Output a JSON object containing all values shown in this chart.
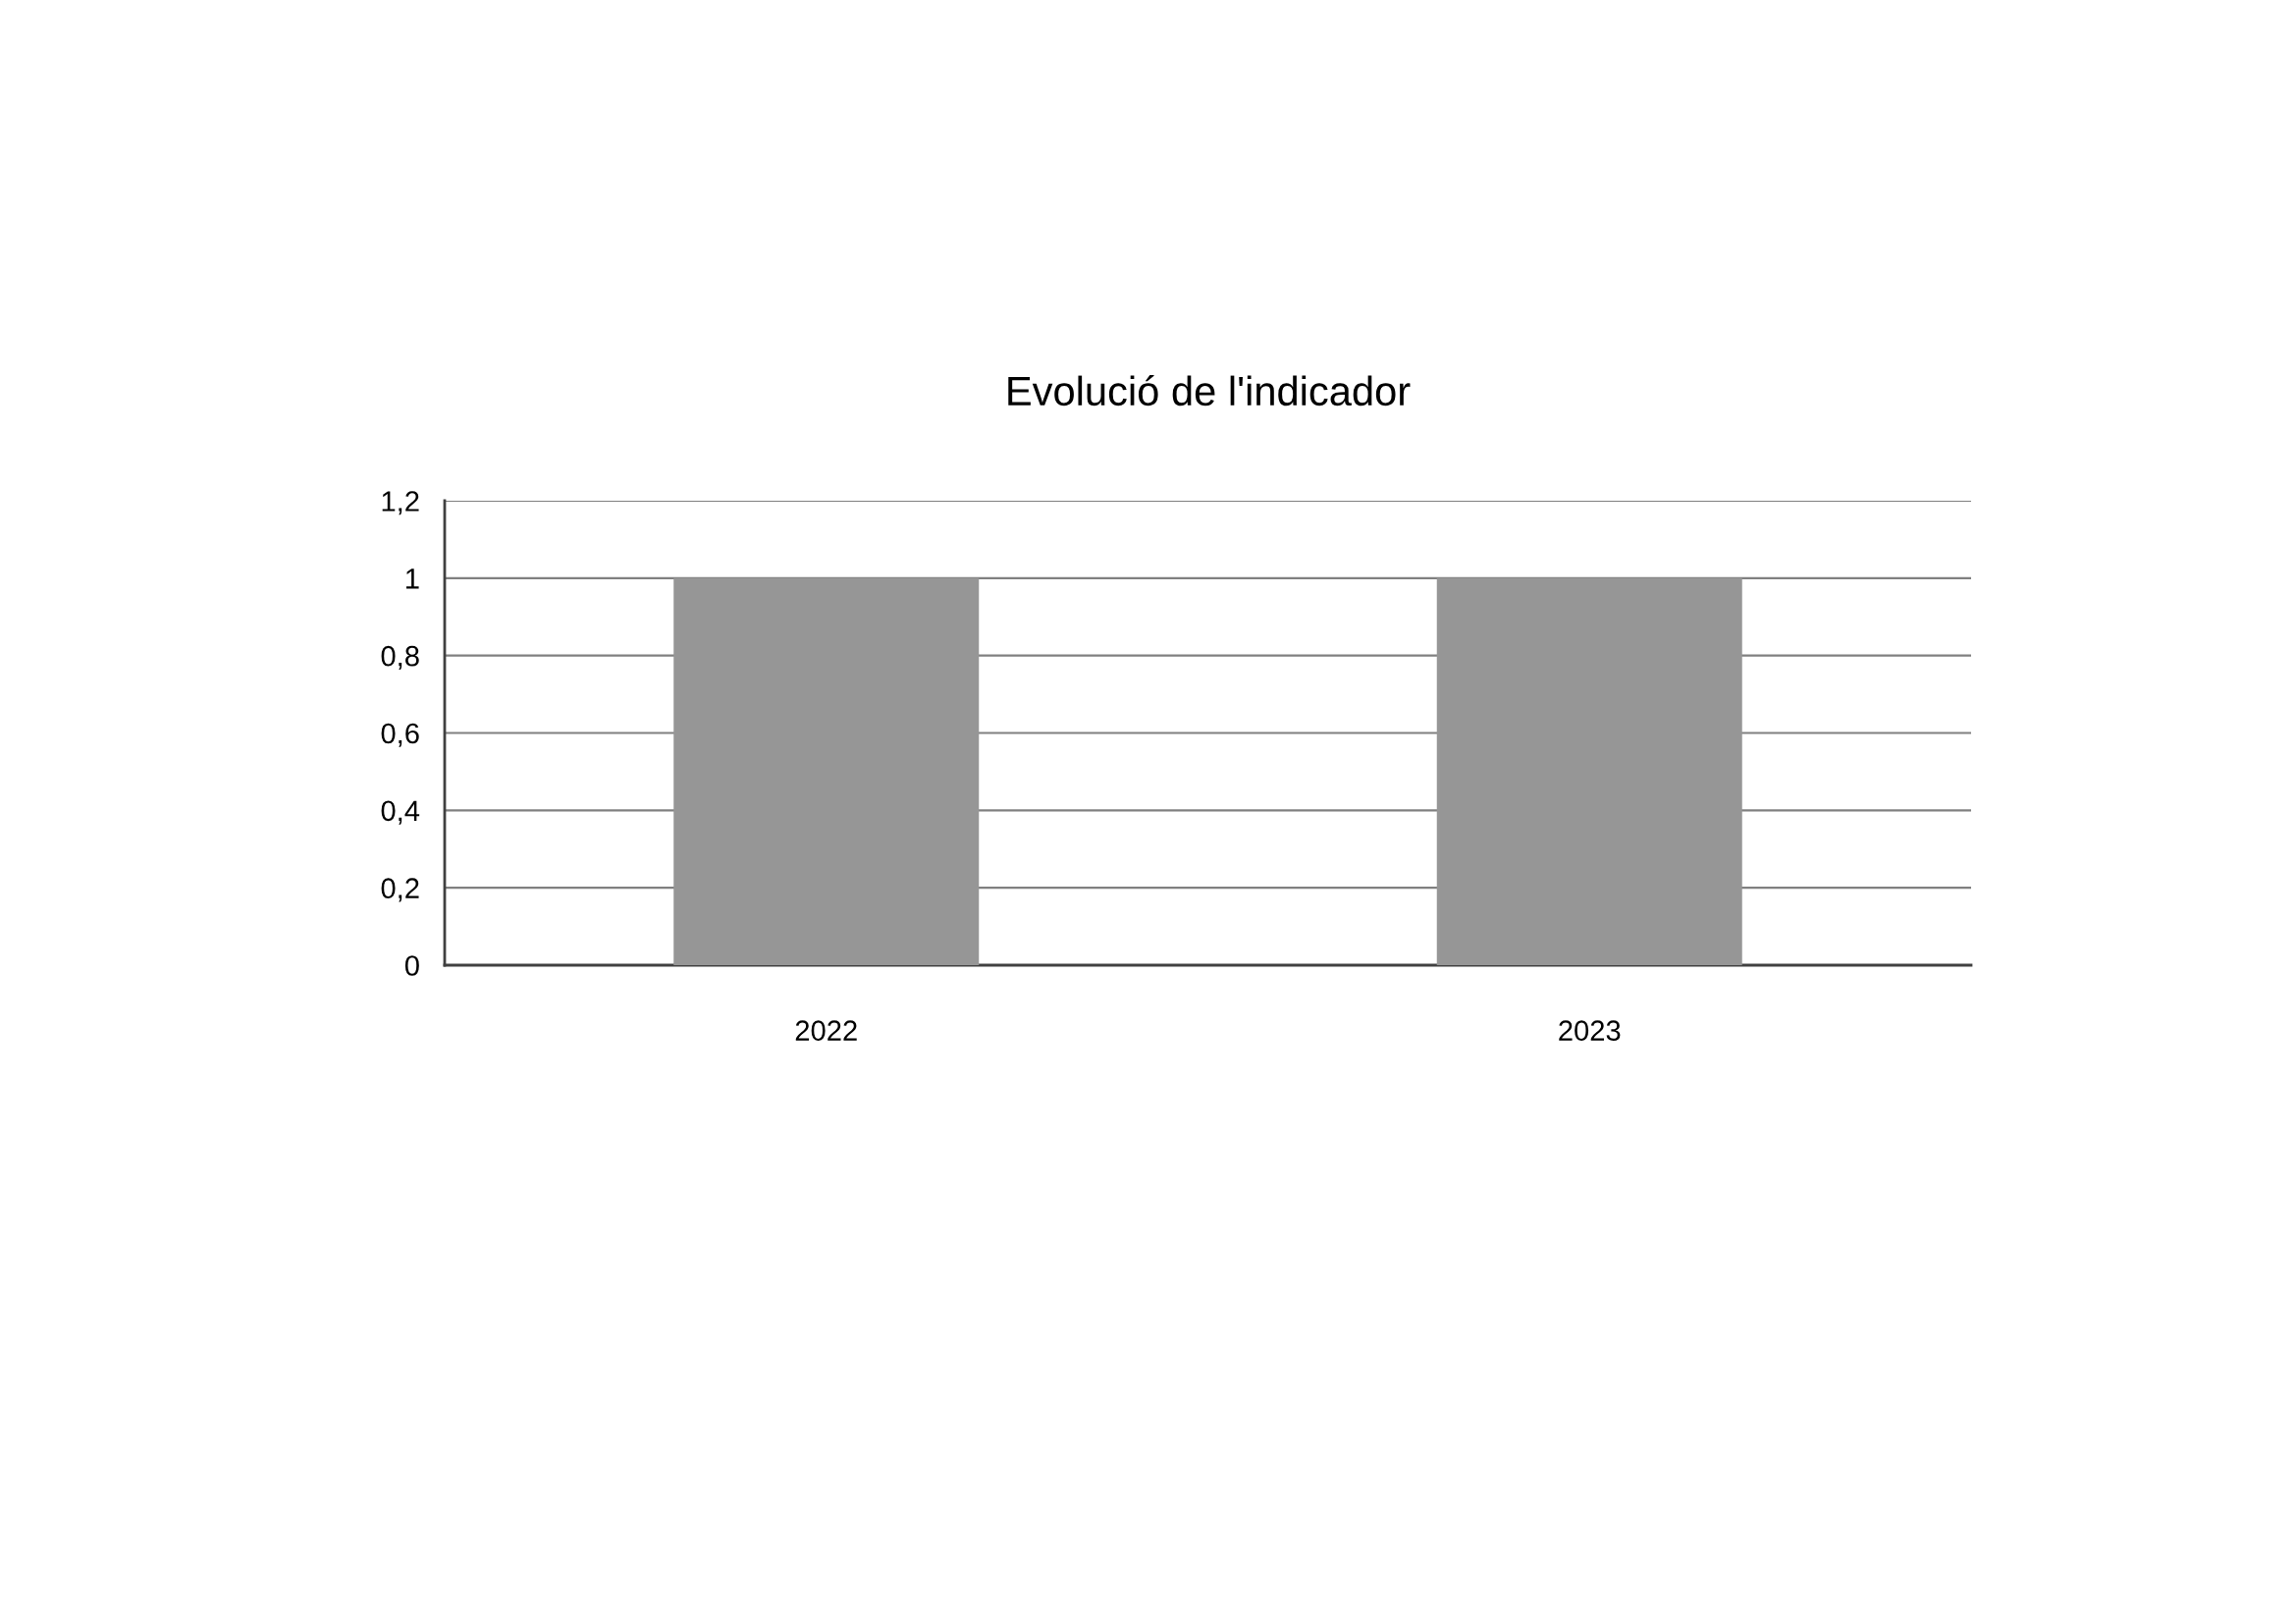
{
  "chart_data": {
    "type": "bar",
    "title": "Evolució de l'indicador",
    "categories": [
      "2022",
      "2023"
    ],
    "values": [
      1,
      1
    ],
    "color": "#969696",
    "ylim": [
      0,
      1.2
    ],
    "yticks": [
      0,
      {
        "value": 0.2,
        "label": "0,2"
      },
      {
        "value": 0.4,
        "label": "0,4"
      },
      {
        "value": 0.6,
        "label": "0,6"
      },
      {
        "value": 0.8,
        "label": "0,8"
      },
      1,
      {
        "value": 1.2,
        "label": "1,2"
      }
    ],
    "grid": "y"
  }
}
